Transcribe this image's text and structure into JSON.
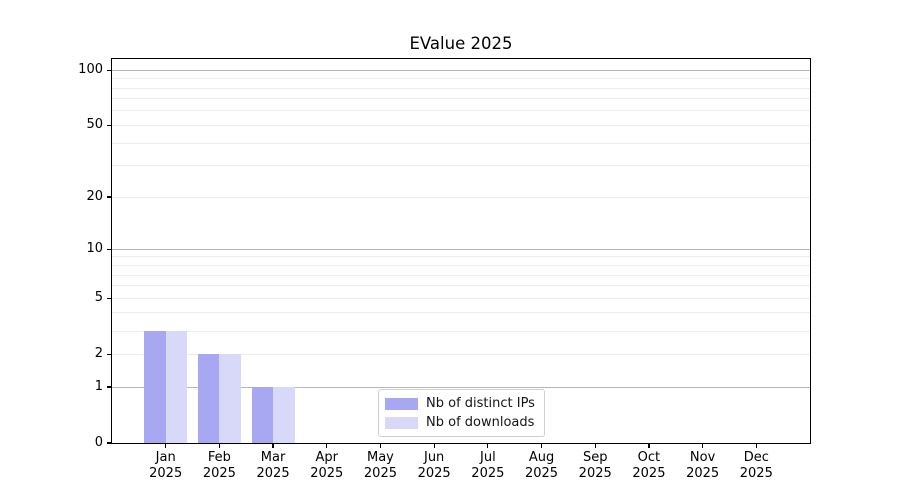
{
  "title": "EValue 2025",
  "chart_data": {
    "type": "bar",
    "title": "EValue 2025",
    "categories": [
      "Jan",
      "Feb",
      "Mar",
      "Apr",
      "May",
      "Jun",
      "Jul",
      "Aug",
      "Sep",
      "Oct",
      "Nov",
      "Dec"
    ],
    "year_label": "2025",
    "series": [
      {
        "name": "Nb of distinct IPs",
        "color": "#a8a8f2",
        "values": [
          3,
          2,
          1,
          0,
          0,
          0,
          0,
          0,
          0,
          0,
          0,
          0
        ]
      },
      {
        "name": "Nb of downloads",
        "color": "#d8d8f8",
        "values": [
          3,
          2,
          1,
          0,
          0,
          0,
          0,
          0,
          0,
          0,
          0,
          0
        ]
      }
    ],
    "xlabel": "",
    "ylabel": "",
    "y_axis": {
      "scale": "log1p",
      "tick_values": [
        0,
        1,
        2,
        5,
        10,
        20,
        50,
        100
      ],
      "major_grid_values": [
        1,
        10,
        100
      ],
      "minor_grid_values": [
        2,
        3,
        4,
        5,
        6,
        7,
        8,
        9,
        20,
        30,
        40,
        50,
        60,
        70,
        80,
        90
      ],
      "ylim": [
        0,
        115
      ]
    },
    "grid": "on",
    "legend_position": "inside-bottom-center"
  },
  "colors": {
    "bar_distinct_ips": "#a8a8f2",
    "bar_downloads": "#d8d8f8",
    "major_grid": "#b5b5b5",
    "minor_grid": "#ececec",
    "axis_line": "#000000",
    "legend_border": "#cfcfcf",
    "background": "#ffffff",
    "text": "#000000"
  }
}
